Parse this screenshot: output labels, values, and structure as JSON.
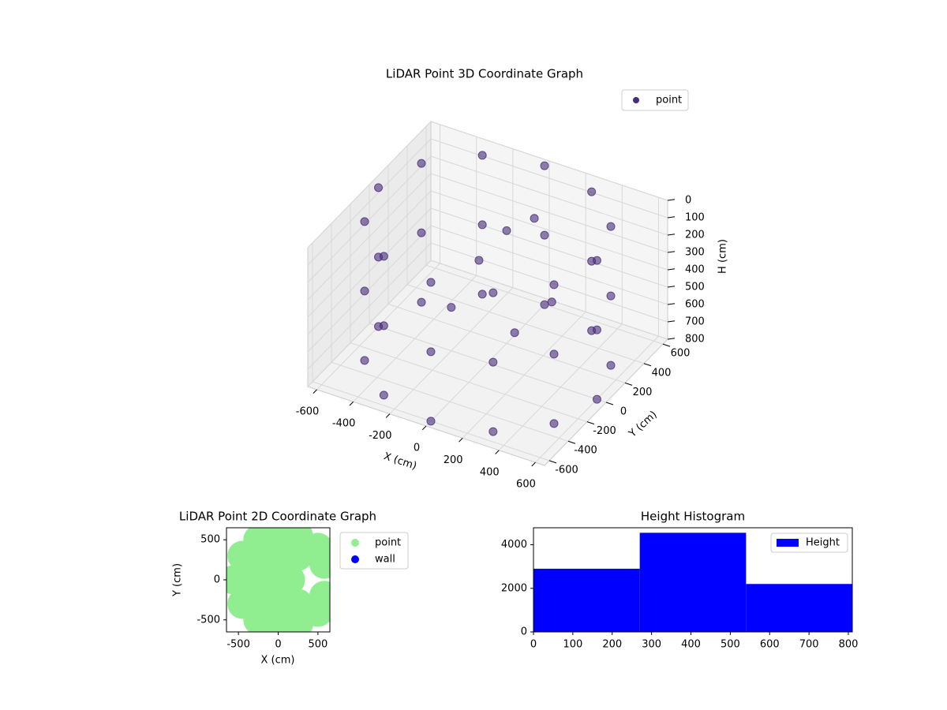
{
  "chart_data": [
    {
      "type": "scatter3d",
      "title": "LiDAR Point 3D Coordinate Graph",
      "xlabel": "X (cm)",
      "ylabel": "Y (cm)",
      "zlabel": "H (cm)",
      "xlim": [
        -650,
        650
      ],
      "ylim": [
        -650,
        650
      ],
      "zlim": [
        800,
        0
      ],
      "xticks": [
        -600,
        -400,
        -200,
        0,
        200,
        400,
        600
      ],
      "yticks": [
        -600,
        -400,
        -200,
        0,
        200,
        400,
        600
      ],
      "zticks": [
        0,
        100,
        200,
        300,
        400,
        500,
        600,
        700,
        800
      ],
      "legend": "upper right",
      "series": [
        {
          "name": "point",
          "color": "#472c7a",
          "x": [
            600,
            520,
            300,
            0,
            -300,
            -520,
            -600,
            -520,
            -300,
            0,
            300,
            520,
            600,
            520,
            300,
            0,
            -300,
            -520,
            -600,
            -520,
            -300,
            0,
            300,
            520,
            600,
            520,
            300,
            0,
            -300,
            -520,
            -600,
            -520,
            -300,
            0,
            300,
            520,
            -100,
            0,
            100,
            200,
            -200,
            300
          ],
          "y": [
            0,
            300,
            520,
            600,
            520,
            300,
            0,
            -300,
            -520,
            -600,
            -520,
            -300,
            0,
            300,
            520,
            600,
            520,
            300,
            0,
            -300,
            -520,
            -600,
            -520,
            -300,
            0,
            300,
            520,
            600,
            520,
            300,
            0,
            -300,
            -520,
            -600,
            -520,
            -300,
            100,
            200,
            300,
            -100,
            0,
            100
          ],
          "z": [
            0,
            0,
            0,
            0,
            0,
            0,
            0,
            0,
            0,
            0,
            0,
            0,
            400,
            400,
            400,
            400,
            400,
            400,
            400,
            400,
            400,
            400,
            400,
            400,
            800,
            800,
            800,
            800,
            800,
            800,
            800,
            800,
            800,
            800,
            800,
            800,
            300,
            150,
            100,
            500,
            550,
            400
          ]
        }
      ]
    },
    {
      "type": "scatter",
      "title": "LiDAR Point 2D Coordinate Graph",
      "xlabel": "X (cm)",
      "ylabel": "Y (cm)",
      "xlim": [
        -650,
        650
      ],
      "ylim": [
        -650,
        650
      ],
      "xticks": [
        -500,
        0,
        500
      ],
      "yticks": [
        -500,
        0,
        500
      ],
      "legend": "outside right",
      "series": [
        {
          "name": "point",
          "color": "#90ee90",
          "x": [
            -550,
            -450,
            -450,
            -250,
            -250,
            0,
            0,
            250,
            250,
            500,
            500,
            580,
            580,
            -300,
            -200,
            -200,
            0,
            0,
            0,
            250,
            250,
            150
          ],
          "y": [
            0,
            300,
            -300,
            500,
            -500,
            600,
            -600,
            550,
            -550,
            400,
            -400,
            200,
            -200,
            0,
            250,
            -250,
            300,
            -300,
            0,
            300,
            -300,
            0
          ]
        },
        {
          "name": "wall",
          "color": "#0000ff",
          "x": [],
          "y": []
        }
      ]
    },
    {
      "type": "histogram",
      "title": "Height Histogram",
      "name": "Height",
      "color": "#0000ff",
      "bins": [
        0,
        270,
        540,
        810
      ],
      "values": [
        2900,
        4550,
        2200
      ],
      "xlim": [
        0,
        810
      ],
      "ylim": [
        0,
        4780
      ],
      "xticks": [
        0,
        100,
        200,
        300,
        400,
        500,
        600,
        700,
        800
      ],
      "yticks": [
        0,
        2000,
        4000
      ],
      "legend": "upper right"
    }
  ]
}
